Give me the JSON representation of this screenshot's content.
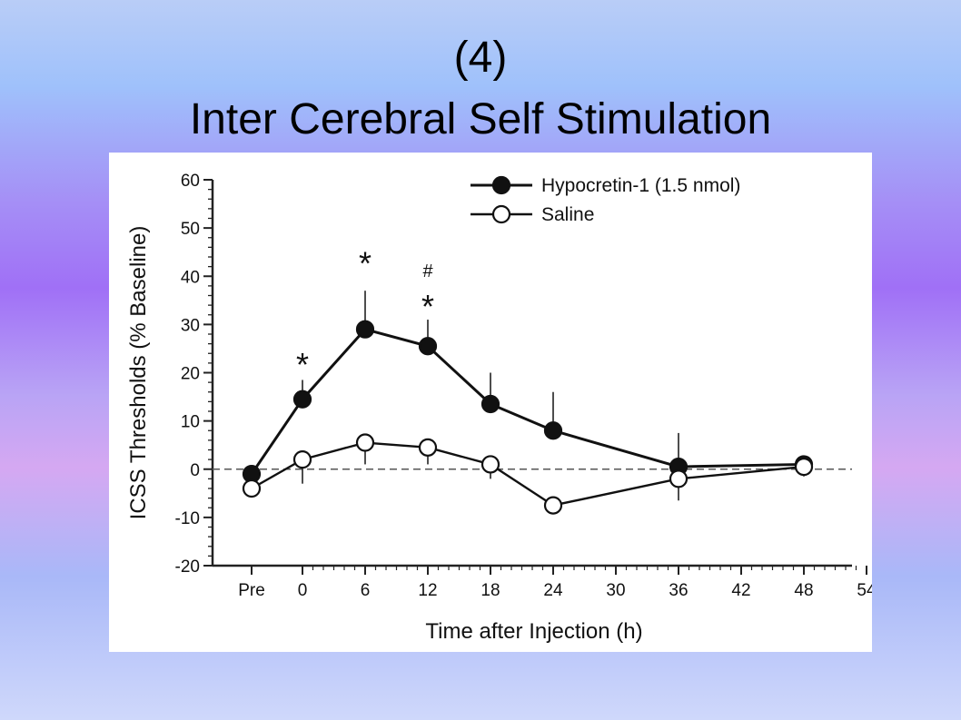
{
  "slide": {
    "title_line1": "(4)",
    "title_line2": "Inter Cerebral Self Stimulation"
  },
  "chart_data": {
    "type": "line",
    "title": "",
    "xlabel": "Time after Injection (h)",
    "ylabel": "ICSS Thresholds (% Baseline)",
    "x_ticks": [
      "Pre",
      "0",
      "6",
      "12",
      "18",
      "24",
      "30",
      "36",
      "42",
      "48",
      "54"
    ],
    "y_ticks": [
      60,
      50,
      40,
      30,
      20,
      10,
      0,
      -10,
      -20
    ],
    "ylim": [
      -20,
      60
    ],
    "reference_line": {
      "y": 0,
      "style": "dashed"
    },
    "legend_position": "top-right",
    "series": [
      {
        "name": "Hypocretin-1 (1.5 nmol)",
        "marker": "filled-circle",
        "x": [
          "Pre",
          "0",
          "6",
          "12",
          "18",
          "24",
          "36",
          "48"
        ],
        "y": [
          -1,
          14.5,
          29,
          25.5,
          13.5,
          8,
          0.5,
          1
        ],
        "error_up": [
          0,
          4,
          8,
          5.5,
          6.5,
          8,
          7,
          0
        ]
      },
      {
        "name": "Saline",
        "marker": "open-circle",
        "x": [
          "Pre",
          "0",
          "6",
          "12",
          "18",
          "24",
          "36",
          "48"
        ],
        "y": [
          -4,
          2,
          5.5,
          4.5,
          1,
          -7.5,
          -2,
          0.5
        ],
        "error_down": [
          0,
          5,
          4.5,
          3.5,
          3,
          1.5,
          4.5,
          2
        ]
      }
    ],
    "annotations": [
      {
        "text": "*",
        "x": "0",
        "y": 22
      },
      {
        "text": "*",
        "x": "6",
        "y": 43
      },
      {
        "text": "#",
        "x": "12",
        "y": 41
      },
      {
        "text": "*",
        "x": "12",
        "y": 34
      }
    ]
  }
}
